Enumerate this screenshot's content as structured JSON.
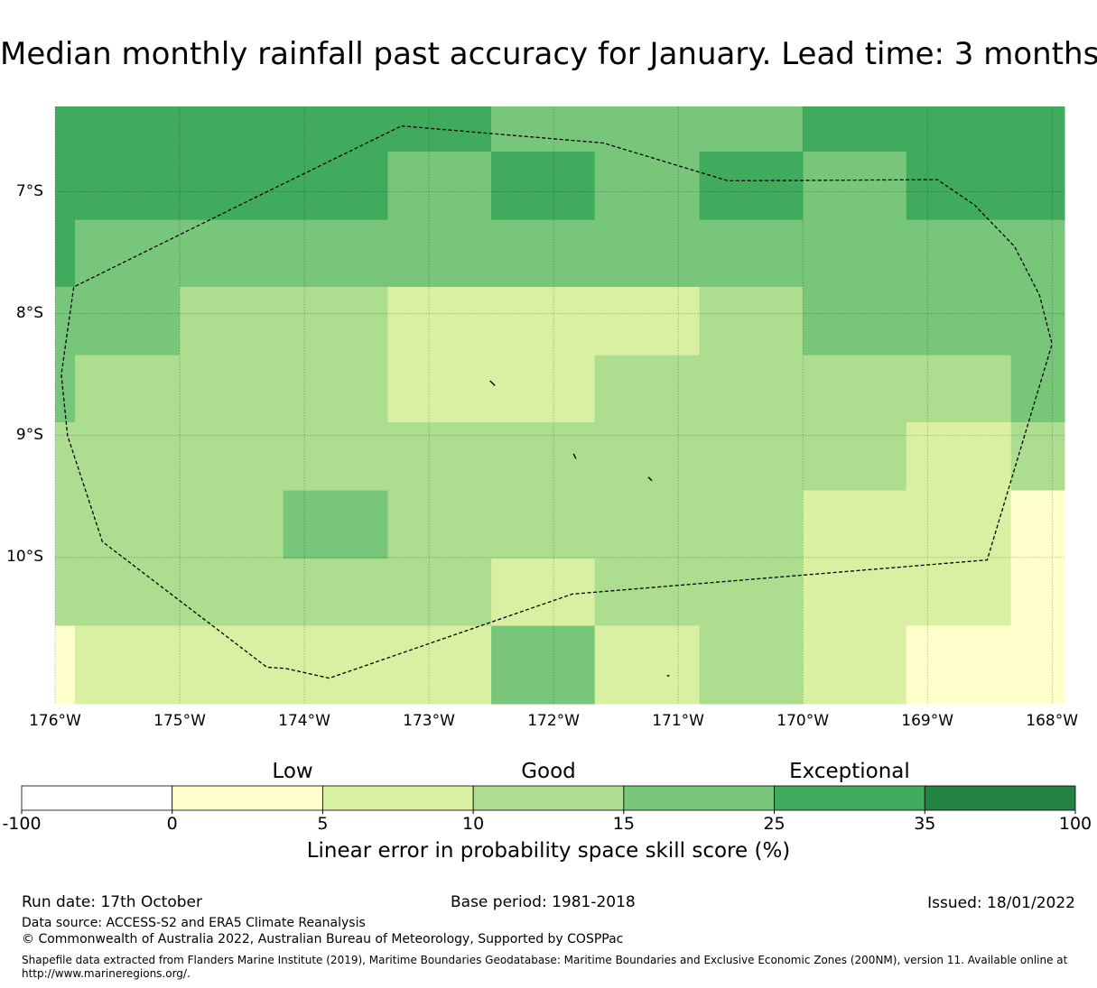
{
  "title": "Median monthly rainfall past accuracy for January. Lead time: 3 months",
  "map": {
    "lon_range": [
      -176.0,
      -167.9
    ],
    "lat_range": [
      -11.2,
      -6.3
    ],
    "lat_ticks": [
      {
        "value": -7,
        "label": "7°S"
      },
      {
        "value": -8,
        "label": "8°S"
      },
      {
        "value": -9,
        "label": "9°S"
      },
      {
        "value": -10,
        "label": "10°S"
      }
    ],
    "lon_ticks": [
      {
        "value": -176,
        "label": "176°W"
      },
      {
        "value": -175,
        "label": "175°W"
      },
      {
        "value": -174,
        "label": "174°W"
      },
      {
        "value": -173,
        "label": "173°W"
      },
      {
        "value": -172,
        "label": "172°W"
      },
      {
        "value": -171,
        "label": "171°W"
      },
      {
        "value": -170,
        "label": "170°W"
      },
      {
        "value": -169,
        "label": "169°W"
      },
      {
        "value": -168,
        "label": "168°W"
      }
    ],
    "colors": [
      "#ffffff",
      "#ffffcc",
      "#d9f0a3",
      "#addd8e",
      "#78c679",
      "#41ab5d",
      "#238443"
    ],
    "col_edges": [
      -176.0,
      -175.84,
      -175.0,
      -174.17,
      -173.33,
      -172.5,
      -171.67,
      -170.83,
      -170.0,
      -169.17,
      -168.33,
      -167.9
    ],
    "row_edges": [
      -6.3,
      -6.67,
      -7.23,
      -7.78,
      -8.34,
      -8.89,
      -9.45,
      -10.01,
      -10.56,
      -11.2
    ],
    "grid": [
      [
        5,
        5,
        5,
        5,
        5,
        4,
        4,
        4,
        5,
        5,
        5
      ],
      [
        5,
        5,
        5,
        5,
        4,
        5,
        4,
        5,
        4,
        5,
        5
      ],
      [
        5,
        4,
        4,
        4,
        4,
        4,
        4,
        4,
        4,
        4,
        4
      ],
      [
        4,
        4,
        3,
        3,
        2,
        2,
        2,
        3,
        4,
        4,
        4
      ],
      [
        4,
        3,
        3,
        3,
        2,
        2,
        3,
        3,
        3,
        3,
        4
      ],
      [
        3,
        3,
        3,
        3,
        3,
        3,
        3,
        3,
        3,
        2,
        3
      ],
      [
        3,
        3,
        3,
        4,
        3,
        3,
        3,
        3,
        2,
        2,
        1
      ],
      [
        3,
        3,
        3,
        3,
        3,
        2,
        3,
        3,
        2,
        2,
        1
      ],
      [
        1,
        2,
        2,
        2,
        2,
        4,
        2,
        3,
        2,
        1,
        1
      ]
    ],
    "eez_boundary": [
      [
        -173.22,
        -6.46
      ],
      [
        -171.6,
        -6.6
      ],
      [
        -170.6,
        -6.91
      ],
      [
        -168.92,
        -6.9
      ],
      [
        -168.62,
        -7.11
      ],
      [
        -168.3,
        -7.45
      ],
      [
        -168.1,
        -7.85
      ],
      [
        -168.0,
        -8.25
      ],
      [
        -168.25,
        -9.1
      ],
      [
        -168.52,
        -10.02
      ],
      [
        -171.85,
        -10.3
      ],
      [
        -173.8,
        -10.99
      ],
      [
        -174.15,
        -10.91
      ],
      [
        -174.3,
        -10.9
      ],
      [
        -175.62,
        -9.87
      ],
      [
        -175.9,
        -9.0
      ],
      [
        -175.95,
        -8.5
      ],
      [
        -175.85,
        -7.78
      ],
      [
        -174.5,
        -7.1
      ],
      [
        -173.22,
        -6.46
      ]
    ],
    "islands": [
      {
        "name": "island-a",
        "points": [
          [
            -172.51,
            -8.55
          ],
          [
            -172.47,
            -8.59
          ]
        ]
      },
      {
        "name": "island-b",
        "points": [
          [
            -171.84,
            -9.15
          ],
          [
            -171.82,
            -9.19
          ]
        ]
      },
      {
        "name": "island-c",
        "points": [
          [
            -171.24,
            -9.34
          ],
          [
            -171.21,
            -9.37
          ]
        ]
      },
      {
        "name": "island-d",
        "points": [
          [
            -171.09,
            -10.97
          ],
          [
            -171.07,
            -10.97
          ]
        ]
      }
    ]
  },
  "legend": {
    "categories": [
      {
        "label": "Low",
        "at": 4.0
      },
      {
        "label": "Good",
        "at": 12.5
      },
      {
        "label": "Exceptional",
        "at": 30.0
      }
    ],
    "bounds": [
      -100,
      0,
      5,
      10,
      15,
      25,
      35,
      100
    ],
    "tick_labels": [
      "-100",
      "0",
      "5",
      "10",
      "15",
      "25",
      "35",
      "100"
    ],
    "title": "Linear error in probability space skill score (%)"
  },
  "footer": {
    "run_date": "Run date: 17th October",
    "base_period": "Base period: 1981-2018",
    "issued": "Issued: 18/01/2022",
    "data_source": "Data source: ACCESS-S2 and ERA5 Climate Reanalysis",
    "copyright": "© Commonwealth of Australia 2022, Australian Bureau of Meteorology, Supported by COSPPac",
    "shapefile": "Shapefile data extracted from Flanders Marine Institute (2019), Maritime Boundaries Geodatabase: Maritime Boundaries and Exclusive Economic Zones (200NM), version 11. Available online at http://www.marineregions.org/."
  }
}
